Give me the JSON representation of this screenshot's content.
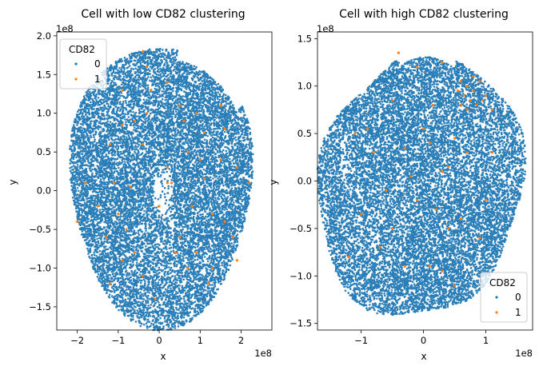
{
  "colors": {
    "c0": "#1f77b4",
    "c1": "#ff7f0e",
    "axis": "#000000",
    "legend_border": "#cccccc"
  },
  "chart_data": [
    {
      "type": "scatter",
      "title": "Cell with low CD82 clustering",
      "xlabel": "x",
      "ylabel": "y",
      "x_offset_label": "1e8",
      "y_offset_label": "1e8",
      "xlim": [
        -2.5,
        2.75
      ],
      "ylim": [
        -1.8,
        2.05
      ],
      "x_ticks": [
        -2,
        -1,
        0,
        1,
        2
      ],
      "y_ticks": [
        -1.5,
        -1.0,
        -0.5,
        0.0,
        0.5,
        1.0,
        1.5,
        2.0
      ],
      "x_tick_labels": [
        "−2",
        "−1",
        "0",
        "1",
        "2"
      ],
      "y_tick_labels": [
        "−1.5",
        "−1.0",
        "−0.5",
        "0.0",
        "0.5",
        "1.0",
        "1.5",
        "2.0"
      ],
      "hue": "CD82",
      "legend": {
        "title": "CD82",
        "placement": "top-left",
        "entries": [
          "0",
          "1"
        ]
      },
      "series": [
        {
          "name": "0",
          "description": "dense cloud of points (~1e8 units), irregular ellipse spanning x −2.4..2.5, y −1.65..1.9; small void near (0.1, 0)",
          "points_shown": 14000
        },
        {
          "name": "1",
          "points": [
            [
              -0.3,
              1.6
            ],
            [
              -0.9,
              1.3
            ],
            [
              -0.3,
              1.0
            ],
            [
              -0.6,
              0.9
            ],
            [
              -0.9,
              0.85
            ],
            [
              -0.4,
              0.6
            ],
            [
              -1.2,
              0.6
            ],
            [
              -1.1,
              0.1
            ],
            [
              -0.7,
              0.05
            ],
            [
              -1.5,
              -0.2
            ],
            [
              -1.0,
              -0.3
            ],
            [
              -0.8,
              -0.5
            ],
            [
              -1.3,
              -0.6
            ],
            [
              -0.9,
              -0.9
            ],
            [
              -0.4,
              -1.1
            ],
            [
              -0.1,
              -1.4
            ],
            [
              0.0,
              -0.2
            ],
            [
              0.2,
              0.1
            ],
            [
              0.2,
              0.3
            ],
            [
              0.3,
              0.1
            ],
            [
              0.5,
              -0.6
            ],
            [
              0.7,
              -1.0
            ],
            [
              0.9,
              -0.8
            ],
            [
              1.0,
              0.4
            ],
            [
              1.1,
              0.15
            ],
            [
              1.3,
              -0.3
            ],
            [
              1.6,
              -0.4
            ],
            [
              1.8,
              -0.6
            ],
            [
              1.9,
              -0.9
            ],
            [
              1.3,
              -1.0
            ],
            [
              0.7,
              0.5
            ],
            [
              0.9,
              1.0
            ],
            [
              1.5,
              0.4
            ],
            [
              1.6,
              0.8
            ],
            [
              1.9,
              0.3
            ],
            [
              2.2,
              0.1
            ],
            [
              0.5,
              1.1
            ],
            [
              0.2,
              1.4
            ],
            [
              -0.2,
              1.3
            ],
            [
              0.8,
              -0.2
            ],
            [
              1.2,
              -1.2
            ],
            [
              0.4,
              -0.8
            ],
            [
              -0.6,
              -0.8
            ],
            [
              -1.2,
              -1.2
            ],
            [
              -0.4,
              1.8
            ],
            [
              0.6,
              0.9
            ],
            [
              1.5,
              1.1
            ],
            [
              -1.8,
              0.1
            ],
            [
              -2.0,
              -0.4
            ],
            [
              1.1,
              0.75
            ]
          ]
        }
      ]
    },
    {
      "type": "scatter",
      "title": "Cell with high CD82 clustering",
      "xlabel": "x",
      "ylabel": "y",
      "x_offset_label": "1e8",
      "y_offset_label": "1e8",
      "xlim": [
        -1.7,
        1.75
      ],
      "ylim": [
        -1.57,
        1.57
      ],
      "x_ticks": [
        -1,
        0,
        1
      ],
      "y_ticks": [
        -1.5,
        -1.0,
        -0.5,
        0.0,
        0.5,
        1.0,
        1.5
      ],
      "x_tick_labels": [
        "−1",
        "0",
        "1"
      ],
      "y_tick_labels": [
        "−1.5",
        "−1.0",
        "−0.5",
        "0.0",
        "0.5",
        "1.0",
        "1.5"
      ],
      "hue": "CD82",
      "legend": {
        "title": "CD82",
        "placement": "bottom-right",
        "entries": [
          "0",
          "1"
        ]
      },
      "series": [
        {
          "name": "0",
          "description": "dense cloud of points (~1e8 units), irregular blob spanning x −1.6..1.65, y −1.48..1.43",
          "points_shown": 14000
        },
        {
          "name": "1",
          "points": [
            [
              0.6,
              1.05
            ],
            [
              0.7,
              1.0
            ],
            [
              0.8,
              0.95
            ],
            [
              0.65,
              0.9
            ],
            [
              0.75,
              0.85
            ],
            [
              0.85,
              0.8
            ],
            [
              0.9,
              1.05
            ],
            [
              0.55,
              0.95
            ],
            [
              0.95,
              0.85
            ],
            [
              1.0,
              0.9
            ],
            [
              0.7,
              0.75
            ],
            [
              0.6,
              0.8
            ],
            [
              0.8,
              1.1
            ],
            [
              1.1,
              0.75
            ],
            [
              -0.4,
              1.35
            ],
            [
              -0.1,
              1.2
            ],
            [
              0.3,
              1.25
            ],
            [
              0.15,
              0.8
            ],
            [
              -0.5,
              0.85
            ],
            [
              -0.9,
              0.55
            ],
            [
              -1.1,
              0.5
            ],
            [
              -0.8,
              0.3
            ],
            [
              -0.3,
              0.35
            ],
            [
              0.1,
              0.4
            ],
            [
              0.5,
              0.45
            ],
            [
              0.3,
              0.1
            ],
            [
              -0.1,
              -0.2
            ],
            [
              0.2,
              -0.3
            ],
            [
              0.4,
              -0.5
            ],
            [
              0.6,
              -0.4
            ],
            [
              0.9,
              -0.6
            ],
            [
              -0.5,
              -0.5
            ],
            [
              -0.3,
              -0.9
            ],
            [
              0.1,
              -0.9
            ],
            [
              0.3,
              -0.95
            ],
            [
              -0.7,
              -0.7
            ],
            [
              -1.0,
              -0.35
            ],
            [
              -1.2,
              -0.8
            ],
            [
              0.5,
              -1.1
            ],
            [
              1.0,
              -0.2
            ],
            [
              1.1,
              0.3
            ],
            [
              -0.2,
              0.05
            ],
            [
              0.0,
              0.55
            ],
            [
              0.4,
              0.15
            ],
            [
              -0.6,
              -0.1
            ],
            [
              0.7,
              0.3
            ]
          ]
        }
      ]
    }
  ]
}
